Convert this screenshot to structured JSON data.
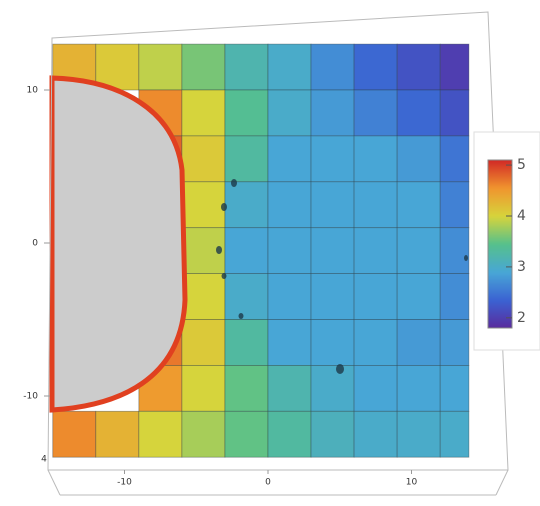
{
  "chart_data": {
    "type": "heatmap",
    "x": [
      -13.5,
      -10.5,
      -7.5,
      -4.5,
      -1.5,
      1.5,
      4.5,
      7.5,
      10.5,
      13.5
    ],
    "y": [
      11.5,
      8.5,
      5.5,
      2.5,
      -0.5,
      -3.5,
      -6.5,
      -9.5,
      -12.5
    ],
    "z": [
      [
        4.3,
        4.1,
        3.9,
        3.6,
        3.2,
        3.0,
        2.7,
        2.4,
        2.2,
        2.0
      ],
      [
        null,
        null,
        4.6,
        4.0,
        3.4,
        3.0,
        2.8,
        2.6,
        2.4,
        2.2
      ],
      [
        null,
        null,
        4.8,
        4.1,
        3.3,
        2.9,
        2.9,
        2.9,
        2.8,
        2.5
      ],
      [
        null,
        null,
        4.9,
        4.0,
        3.0,
        2.9,
        2.9,
        2.9,
        2.9,
        2.6
      ],
      [
        null,
        null,
        4.9,
        3.9,
        2.9,
        2.9,
        2.9,
        2.9,
        2.9,
        2.7
      ],
      [
        null,
        null,
        4.9,
        4.0,
        3.0,
        2.9,
        2.9,
        2.9,
        2.9,
        2.7
      ],
      [
        null,
        null,
        4.7,
        4.1,
        3.3,
        2.9,
        2.9,
        2.9,
        2.8,
        2.8
      ],
      [
        null,
        null,
        4.5,
        4.0,
        3.5,
        3.2,
        3.0,
        2.9,
        2.9,
        2.9
      ],
      [
        4.6,
        4.3,
        4.0,
        3.8,
        3.5,
        3.3,
        3.1,
        3.0,
        3.0,
        3.0
      ]
    ],
    "xlim": [
      -15,
      14
    ],
    "ylim": [
      -14,
      13
    ],
    "xticks": [
      -10,
      0,
      10
    ],
    "yticks": [
      10,
      0,
      -10
    ],
    "zticks": [
      4
    ],
    "clim": [
      1.8,
      5.1
    ],
    "cticks": [
      2,
      3,
      4,
      5
    ],
    "colormap": [
      "#5a2a9c",
      "#3b62d2",
      "#48a6d6",
      "#55c08c",
      "#d6d43c",
      "#f0952e",
      "#d22a26"
    ]
  }
}
